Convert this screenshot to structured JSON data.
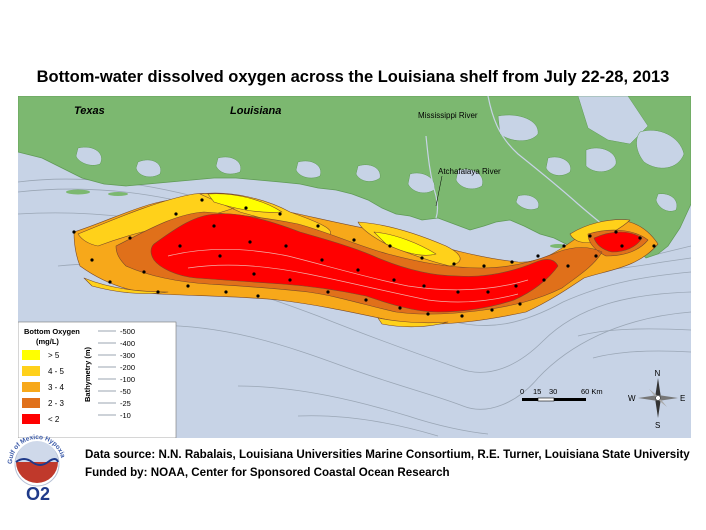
{
  "title": "Bottom-water dissolved oxygen across the Louisiana shelf from July 22-28, 2013",
  "map_labels": {
    "texas": "Texas",
    "louisiana": "Louisiana",
    "mississippi_river": "Mississippi River",
    "atchafalaya_river": "Atchafalaya River"
  },
  "legend": {
    "oxygen_title_line1": "Bottom Oxygen",
    "oxygen_title_line2": "(mg/L)",
    "oxygen_classes": [
      {
        "label": "> 5",
        "color": "#ffff00"
      },
      {
        "label": "4 - 5",
        "color": "#ffd11a"
      },
      {
        "label": "3 - 4",
        "color": "#f7a81a"
      },
      {
        "label": "2 - 3",
        "color": "#e0701a"
      },
      {
        "label": "< 2",
        "color": "#ff0000"
      }
    ],
    "bathymetry_title": "Bathymetry (m)",
    "bathymetry_levels": [
      "-500",
      "-400",
      "-300",
      "-200",
      "-100",
      "-50",
      "-25",
      "-10"
    ]
  },
  "scale_bar": {
    "ticks": [
      "0",
      "15",
      "30",
      "60 Km"
    ]
  },
  "compass": {
    "n": "N",
    "s": "S",
    "e": "E",
    "w": "W"
  },
  "footer": {
    "data_source": "Data source: N.N. Rabalais, Louisiana Universities Marine Consortium, R.E. Turner, Louisiana State University",
    "funded_by": "Funded by: NOAA, Center for Sponsored Coastal Ocean Research"
  },
  "logo": {
    "ring_text": "Gulf of Mexico Hypoxia",
    "mark": "O2"
  },
  "colors": {
    "land": "#7cb870",
    "water": "#c7d3e6",
    "hypoxic": "#ff0000"
  }
}
